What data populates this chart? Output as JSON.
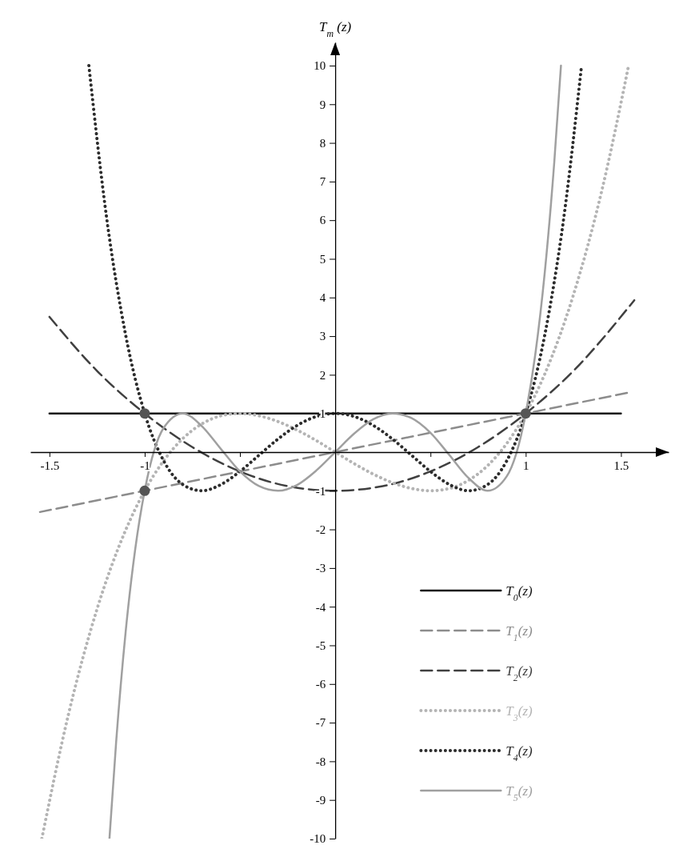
{
  "chart_data": {
    "type": "line",
    "ylabel": "T$_{m}$ (z)",
    "xlim": [
      -1.6,
      1.75
    ],
    "ylim": [
      -10,
      10.6
    ],
    "xticks": [
      -1.5,
      -1,
      {
        "value": -0.5,
        "label": null
      },
      {
        "value": 0.5,
        "label": null
      },
      1,
      1.5
    ],
    "yticks": [
      -10,
      -9,
      -8,
      -7,
      -6,
      -5,
      -4,
      -3,
      -2,
      -1,
      1,
      2,
      3,
      4,
      5,
      6,
      7,
      8,
      9,
      10
    ],
    "legend": "bottom right",
    "marker": "none",
    "series": [
      {
        "name": "T$_{0}$(z)",
        "color": "#161616",
        "line_style": "solid",
        "x": [
          -1.5,
          1.5
        ],
        "values": [
          1,
          1
        ]
      },
      {
        "name": "T$_{1}$(z)",
        "color": "#8c8c8c",
        "line_style": "dashed",
        "x": [
          -1.55,
          1.55
        ],
        "values": [
          -1.55,
          1.55
        ]
      },
      {
        "name": "T$_{2}$(z)",
        "color": "#404040",
        "line_style": "dashed",
        "x": [
          -1.5,
          -1.25,
          -1,
          -0.75,
          -0.5,
          -0.25,
          0,
          0.25,
          0.5,
          0.75,
          1,
          1.25,
          1.57
        ],
        "values": [
          3.5,
          2.1,
          1,
          0.13,
          -0.5,
          -0.88,
          -1,
          -0.88,
          -0.5,
          0.13,
          1,
          2.1,
          3.93
        ]
      },
      {
        "name": "T$_{3}$(z)",
        "color": "#b4b4b4",
        "line_style": "dotted",
        "x": [
          -1.54,
          -1.4,
          -1.25,
          -1.1,
          -1,
          -0.9,
          -0.8,
          -0.7,
          -0.6,
          -0.5,
          -0.4,
          -0.3,
          -0.2,
          -0.1,
          0,
          0.1,
          0.2,
          0.3,
          0.4,
          0.5,
          0.6,
          0.7,
          0.8,
          0.9,
          1,
          1.1,
          1.25,
          1.4,
          1.54
        ],
        "values": [
          -10,
          -6.78,
          -4.06,
          -2.02,
          -1,
          -0.22,
          0.35,
          0.73,
          0.94,
          1,
          0.94,
          0.79,
          0.57,
          0.3,
          0,
          -0.3,
          -0.57,
          -0.79,
          -0.94,
          -1,
          -0.94,
          -0.73,
          -0.35,
          0.22,
          1,
          2.02,
          4.06,
          6.78,
          10
        ]
      },
      {
        "name": "T$_{4}$(z)",
        "color": "#2c2c2c",
        "line_style": "dotted",
        "x": [
          -1.293,
          -1.2,
          -1.1,
          -1,
          -0.9,
          -0.8,
          -0.7,
          -0.6,
          -0.5,
          -0.4,
          -0.3,
          -0.2,
          -0.1,
          0,
          0.1,
          0.2,
          0.3,
          0.4,
          0.5,
          0.6,
          0.7,
          0.8,
          0.9,
          1,
          1.1,
          1.2,
          1.293
        ],
        "values": [
          10,
          6.07,
          3.03,
          1,
          -0.23,
          -0.84,
          -1,
          -0.84,
          -0.5,
          -0.08,
          0.34,
          0.69,
          0.92,
          1,
          0.92,
          0.69,
          0.34,
          -0.08,
          -0.5,
          -0.84,
          -1,
          -0.84,
          -0.23,
          1,
          3.03,
          6.07,
          10
        ]
      },
      {
        "name": "T$_{5}$(z)",
        "color": "#a0a0a0",
        "line_style": "solid",
        "x": [
          -1.185,
          -1.15,
          -1.1,
          -1.05,
          -1,
          -0.9,
          -0.8,
          -0.7,
          -0.6,
          -0.5,
          -0.4,
          -0.3,
          -0.2,
          -0.1,
          0,
          0.1,
          0.2,
          0.3,
          0.4,
          0.5,
          0.6,
          0.7,
          0.8,
          0.9,
          1,
          1.05,
          1.1,
          1.15,
          1.185
        ],
        "values": [
          -10,
          -7.51,
          -4.65,
          -2.52,
          -1,
          0.63,
          1,
          0.67,
          0.08,
          -0.5,
          -0.88,
          -1,
          -0.85,
          -0.48,
          0,
          0.48,
          0.85,
          1,
          0.88,
          0.5,
          -0.08,
          -0.67,
          -1,
          -0.63,
          1,
          2.52,
          4.65,
          7.51,
          10
        ]
      },
      {
        "type": "scatter",
        "marker": "circle",
        "color": "#555555",
        "x": [
          -1,
          -1,
          1
        ],
        "values": [
          1,
          -1,
          1
        ]
      }
    ]
  }
}
